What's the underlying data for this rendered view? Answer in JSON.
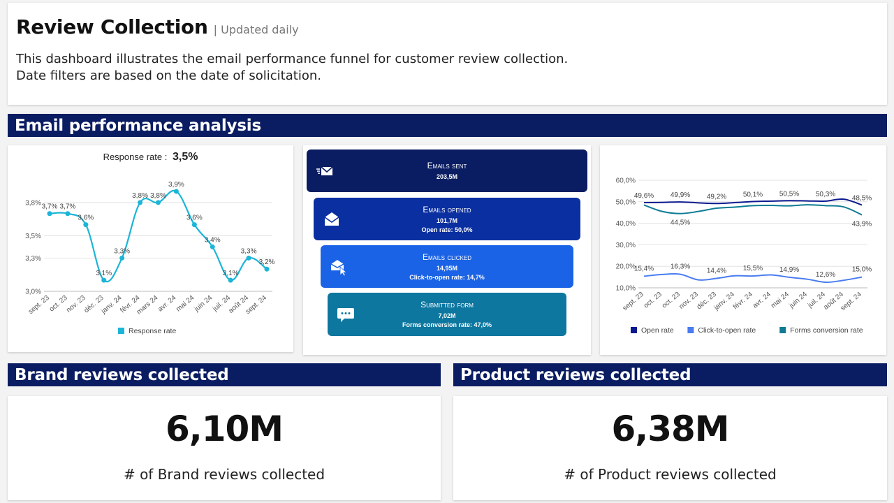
{
  "header": {
    "title": "Review Collection",
    "subtitle": "| Updated daily",
    "desc_line1": "This dashboard illustrates the email performance funnel for customer review collection.",
    "desc_line2": "Date filters are based on the date of solicitation."
  },
  "sections": {
    "email": "Email performance analysis",
    "brand": "Brand reviews collected",
    "product": "Product reviews collected"
  },
  "response": {
    "label": "Response rate :",
    "value": "3,5%"
  },
  "funnel": [
    {
      "title": "Emails sent",
      "value": "203,5M",
      "rate": "",
      "icon": "email-send-icon"
    },
    {
      "title": "Emails opened",
      "value": "101,7M",
      "rate": "Open rate: 50,0%",
      "icon": "envelope-open-icon"
    },
    {
      "title": "Emails clicked",
      "value": "14,95M",
      "rate": "Click-to-open rate: 14,7%",
      "icon": "email-click-icon"
    },
    {
      "title": "Submitted form",
      "value": "7,02M",
      "rate": "Forms conversion rate: 47,0%",
      "icon": "chat-bubble-icon"
    }
  ],
  "kpis": {
    "brand": {
      "value": "6,10M",
      "label": "# of Brand reviews collected"
    },
    "product": {
      "value": "6,38M",
      "label": "# of Product reviews collected"
    }
  },
  "colors": {
    "navy": "#0b1d62",
    "response": "#1cb5d8",
    "open": "#0b1a8f",
    "cto": "#4a7cf0",
    "forms": "#0e7b94"
  },
  "chart_data": [
    {
      "type": "line",
      "x": [
        "sept. 23",
        "oct. 23",
        "nov. 23",
        "déc. 23",
        "janv. 24",
        "févr. 24",
        "mars 24",
        "avr. 24",
        "mai 24",
        "juin 24",
        "juil. 24",
        "août 24",
        "sept. 24"
      ],
      "series": [
        {
          "name": "Response rate",
          "values": [
            3.7,
            3.7,
            3.6,
            3.1,
            3.3,
            3.8,
            3.8,
            3.9,
            3.6,
            3.4,
            3.1,
            3.3,
            3.2
          ],
          "labels": [
            "3,7%",
            "3,7%",
            "3,6%",
            "3,1%",
            "3,3%",
            "3,8%",
            "3,8%",
            "3,9%",
            "3,6%",
            "3,4%",
            "3,1%",
            "3,3%",
            "3,2%"
          ]
        }
      ],
      "yticks": [
        "3,0%",
        "3,3%",
        "3,5%",
        "3,8%"
      ],
      "ylim": [
        3.0,
        3.95
      ],
      "legend": "bottom"
    },
    {
      "type": "line",
      "x": [
        "sept. 23",
        "oct. 23",
        "oct. 23",
        "nov. 23",
        "déc. 23",
        "janv. 24",
        "févr. 24",
        "avr. 24",
        "mai 24",
        "juin 24",
        "juil. 24",
        "août 24",
        "sept. 24"
      ],
      "series": [
        {
          "name": "Open rate",
          "values": [
            49.6,
            49.7,
            49.9,
            49.5,
            49.2,
            49.6,
            50.1,
            50.3,
            50.5,
            50.4,
            50.3,
            51.2,
            48.5
          ],
          "labels": [
            "49,6%",
            "",
            "49,9%",
            "",
            "49,2%",
            "",
            "50,1%",
            "",
            "50,5%",
            "",
            "50,3%",
            "",
            "48,5%"
          ]
        },
        {
          "name": "Click-to-open rate",
          "values": [
            15.4,
            16.2,
            16.3,
            13.7,
            14.4,
            15.6,
            15.5,
            16.0,
            14.9,
            14.0,
            12.6,
            13.5,
            15.0
          ],
          "labels": [
            "15,4%",
            "",
            "16,3%",
            "",
            "14,4%",
            "",
            "15,5%",
            "",
            "14,9%",
            "",
            "12,6%",
            "",
            "15,0%"
          ]
        },
        {
          "name": "Forms conversion rate",
          "values": [
            48.5,
            45.5,
            44.5,
            45.5,
            47.0,
            47.5,
            48.2,
            48.3,
            48.1,
            48.6,
            48.2,
            47.6,
            43.9
          ],
          "labels": [
            "",
            "",
            "44,5%",
            "",
            "",
            "",
            "",
            "",
            "",
            "",
            "",
            "",
            "43,9%"
          ]
        }
      ],
      "yticks": [
        "10,0%",
        "20,0%",
        "30,0%",
        "40,0%",
        "50,0%",
        "60,0%"
      ],
      "ylim": [
        10,
        60
      ],
      "legend": "bottom"
    }
  ]
}
